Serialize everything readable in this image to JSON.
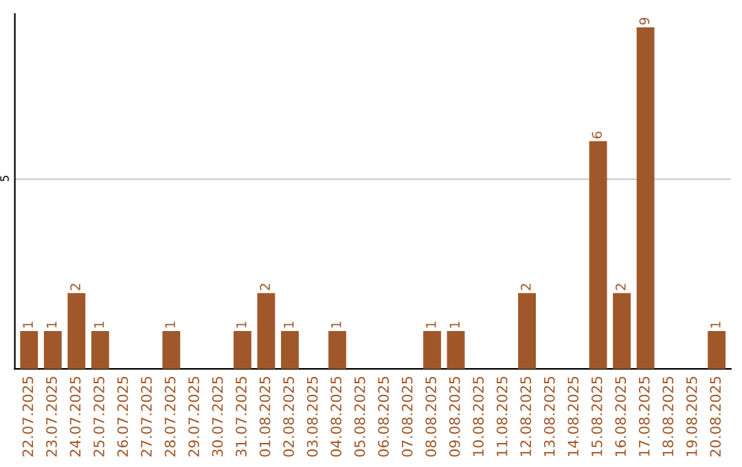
{
  "chart_data": {
    "type": "bar",
    "categories": [
      "22.07.2025",
      "23.07.2025",
      "24.07.2025",
      "25.07.2025",
      "26.07.2025",
      "27.07.2025",
      "28.07.2025",
      "29.07.2025",
      "30.07.2025",
      "31.07.2025",
      "01.08.2025",
      "02.08.2025",
      "03.08.2025",
      "04.08.2025",
      "05.08.2025",
      "06.08.2025",
      "07.08.2025",
      "08.08.2025",
      "09.08.2025",
      "10.08.2025",
      "11.08.2025",
      "12.08.2025",
      "13.08.2025",
      "14.08.2025",
      "15.08.2025",
      "16.08.2025",
      "17.08.2025",
      "18.08.2025",
      "19.08.2025",
      "20.08.2025"
    ],
    "values": [
      1,
      1,
      2,
      1,
      0,
      0,
      1,
      0,
      0,
      1,
      2,
      1,
      0,
      1,
      0,
      0,
      0,
      1,
      1,
      0,
      0,
      2,
      0,
      0,
      6,
      2,
      9,
      0,
      0,
      1
    ],
    "value_labels": [
      "1",
      "1",
      "2",
      "1",
      null,
      null,
      "1",
      null,
      null,
      "1",
      "2",
      "1",
      null,
      "1",
      null,
      null,
      null,
      "1",
      "1",
      null,
      null,
      "2",
      null,
      null,
      "6",
      "2",
      "9",
      null,
      null,
      "1"
    ],
    "color": "#a0582a",
    "ylim": [
      0,
      9.35
    ],
    "yticks": [
      5
    ],
    "grid": "y"
  }
}
